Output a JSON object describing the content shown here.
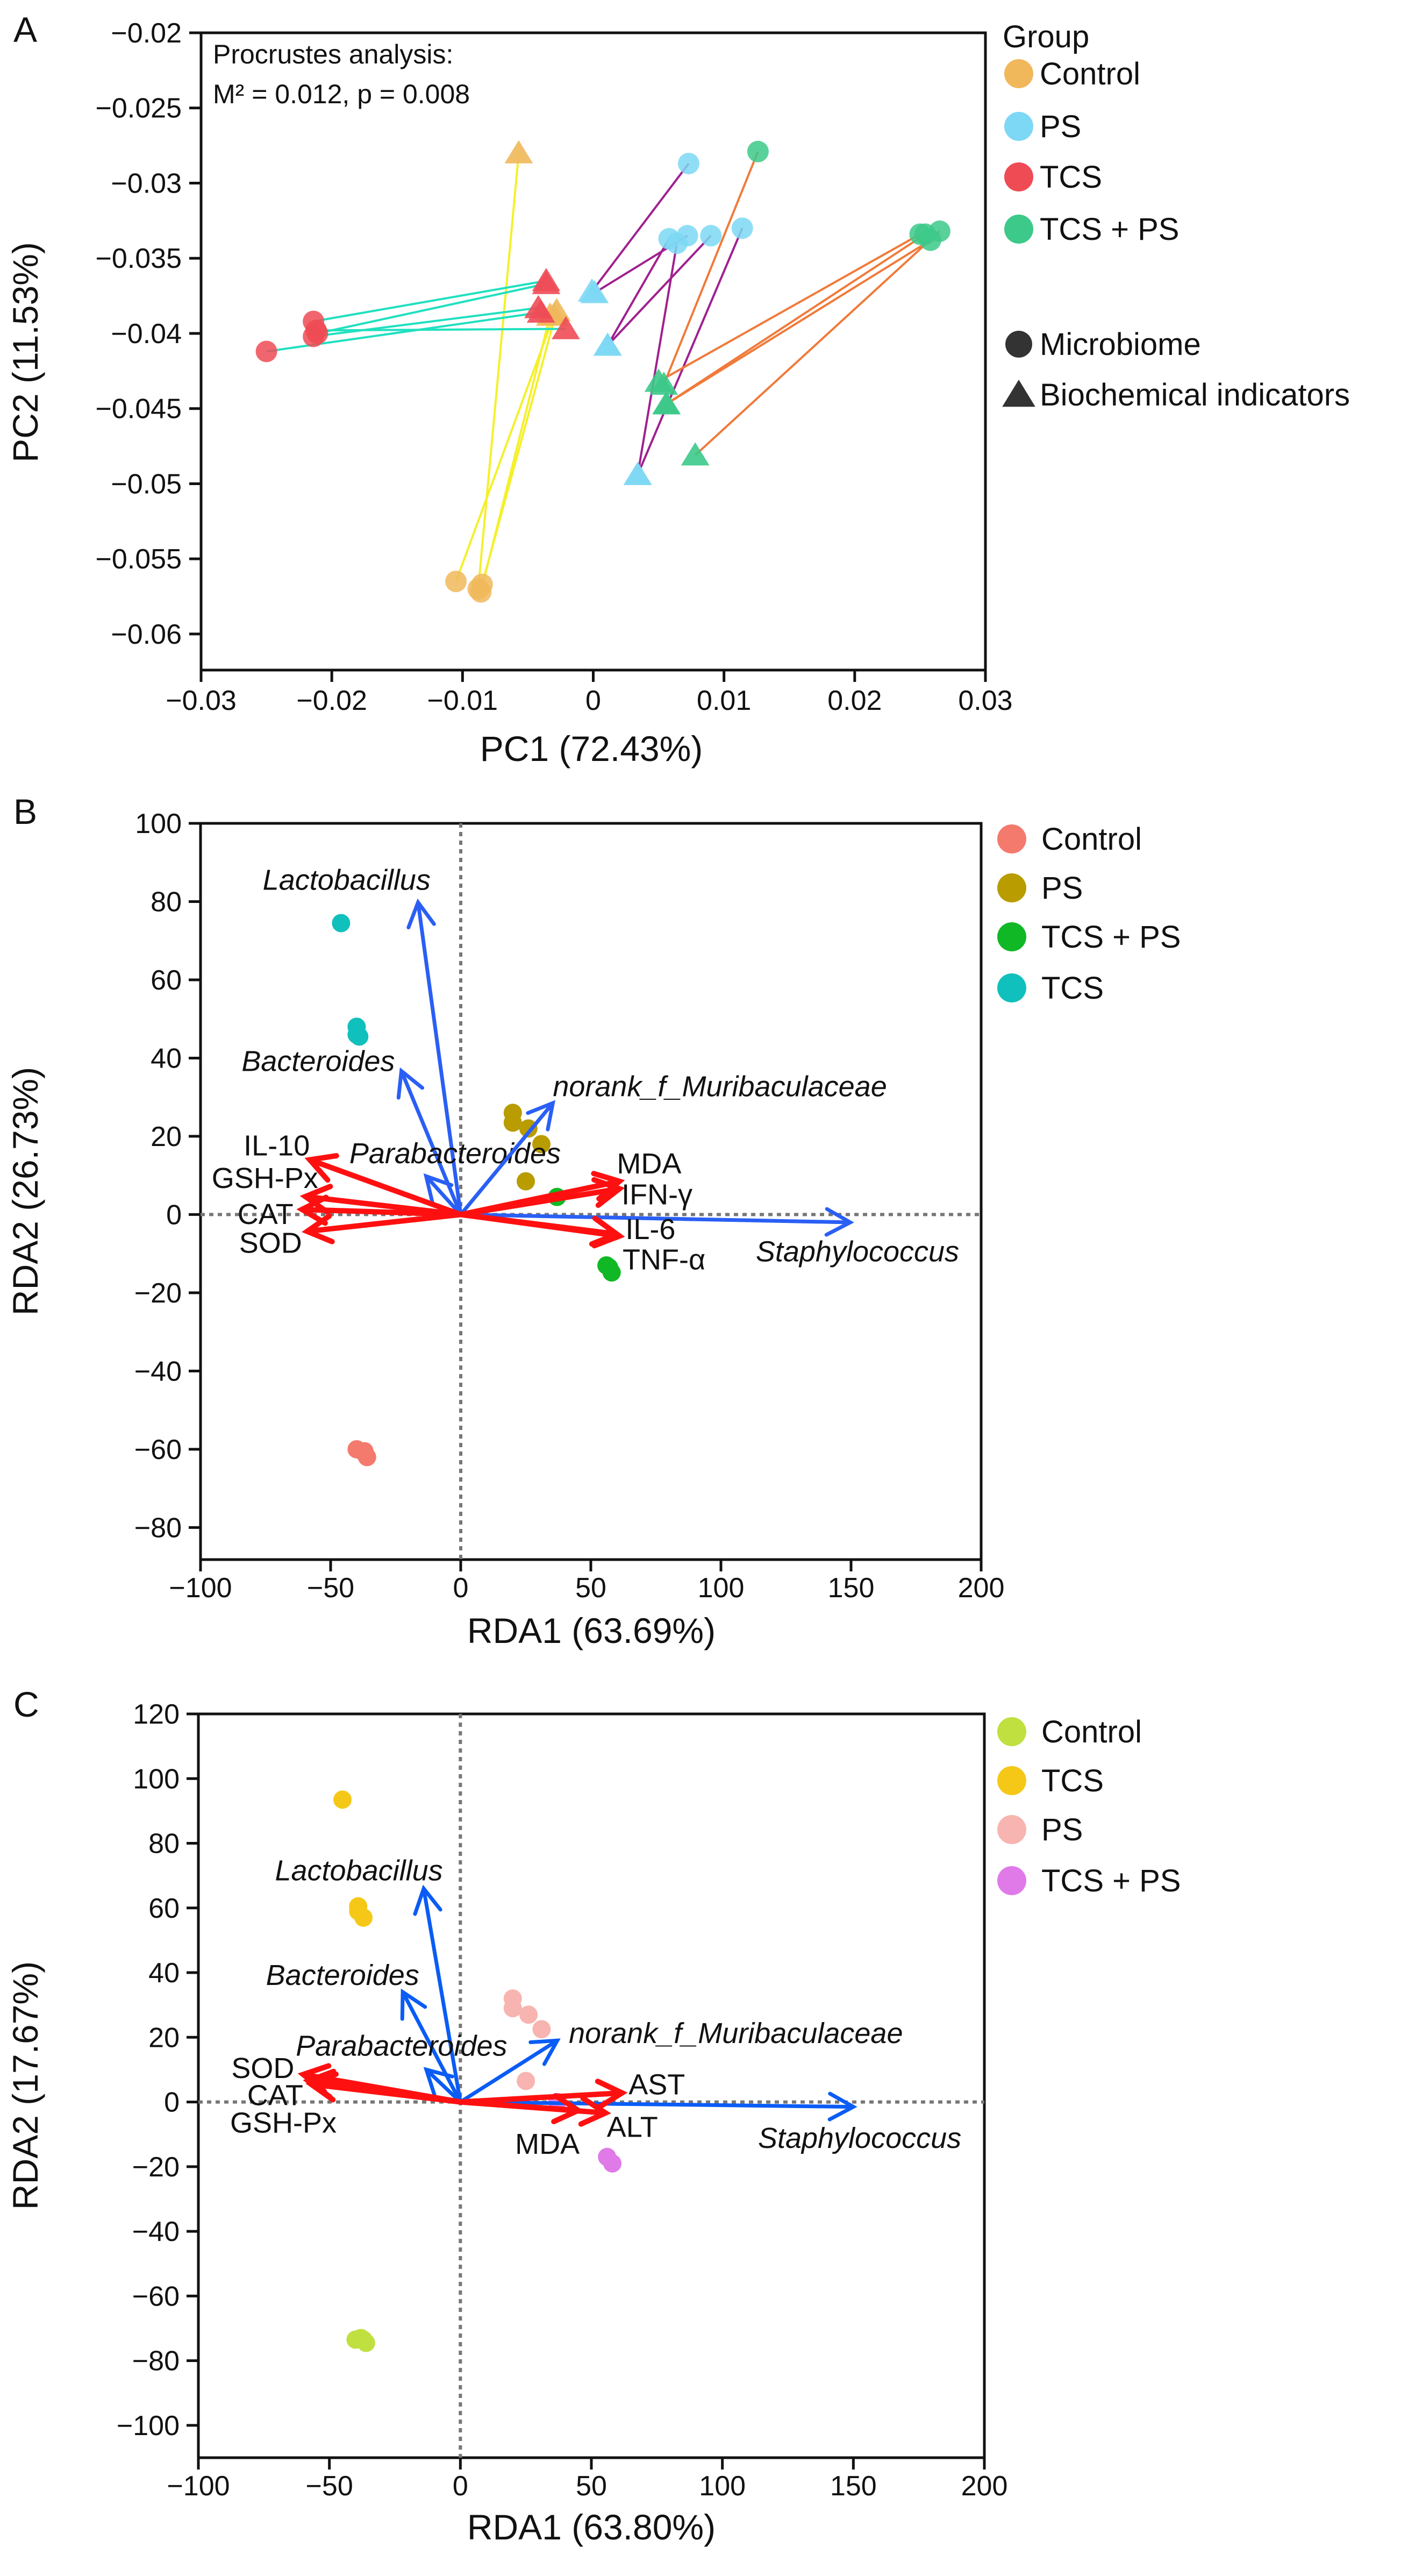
{
  "chart_data": [
    {
      "panel": "A",
      "type": "scatter",
      "title": "",
      "annotation": [
        "Procrustes analysis:",
        "M² = 0.012, p = 0.008"
      ],
      "xlabel": "PC1 (72.43%)",
      "ylabel": "PC2 (11.53%)",
      "xlim": [
        -0.03,
        0.03
      ],
      "ylim": [
        -0.0624,
        -0.02
      ],
      "xticks": [
        -0.03,
        -0.02,
        -0.01,
        0,
        0.01,
        0.02,
        0.03
      ],
      "xtick_labels": [
        "−0.03",
        "−0.02",
        "−0.01",
        "0",
        "0.01",
        "0.02",
        "0.03"
      ],
      "yticks": [
        -0.02,
        -0.025,
        -0.03,
        -0.035,
        -0.04,
        -0.045,
        -0.05,
        -0.055,
        -0.06
      ],
      "ytick_labels": [
        "−0.02",
        "−0.025",
        "−0.03",
        "−0.035",
        "−0.04",
        "−0.045",
        "−0.05",
        "−0.055",
        "−0.06"
      ],
      "legend_title": "Group",
      "shape_legend": [
        {
          "label": "Microbiome",
          "shape": "circle"
        },
        {
          "label": "Biochemical indicators",
          "shape": "triangle"
        }
      ],
      "legend_position": "right",
      "groups": [
        {
          "name": "Control",
          "color": "#F0B85A",
          "line_color": "#F5F02A",
          "pairs": [
            [
              [
                -0.0105,
                -0.0565
              ],
              [
                -0.003,
                -0.0388
              ]
            ],
            [
              [
                -0.0088,
                -0.057
              ],
              [
                -0.0057,
                -0.028
              ]
            ],
            [
              [
                -0.0086,
                -0.0572
              ],
              [
                -0.0033,
                -0.0388
              ]
            ],
            [
              [
                -0.0085,
                -0.0567
              ],
              [
                -0.0028,
                -0.0385
              ]
            ]
          ]
        },
        {
          "name": "PS",
          "color": "#7DD8F5",
          "line_color": "#A0208F",
          "pairs": [
            [
              [
                0.0073,
                -0.0287
              ],
              [
                -0.0001,
                -0.0372
              ]
            ],
            [
              [
                0.0072,
                -0.0335
              ],
              [
                0.0001,
                -0.0373
              ]
            ],
            [
              [
                0.0058,
                -0.0337
              ],
              [
                0.0011,
                -0.0408
              ]
            ],
            [
              [
                0.009,
                -0.0335
              ],
              [
                0.0011,
                -0.0408
              ]
            ],
            [
              [
                0.0064,
                -0.034
              ],
              [
                0.0034,
                -0.0494
              ]
            ],
            [
              [
                0.0114,
                -0.033
              ],
              [
                0.0034,
                -0.0494
              ]
            ]
          ]
        },
        {
          "name": "TCS",
          "color": "#EE4B55",
          "line_color": "#20E0C0",
          "pairs": [
            [
              [
                -0.0214,
                -0.0392
              ],
              [
                -0.0036,
                -0.0365
              ]
            ],
            [
              [
                -0.0211,
                -0.04
              ],
              [
                -0.0036,
                -0.0367
              ]
            ],
            [
              [
                -0.0214,
                -0.0402
              ],
              [
                -0.0042,
                -0.0383
              ]
            ],
            [
              [
                -0.0212,
                -0.0398
              ],
              [
                -0.0021,
                -0.0397
              ]
            ],
            [
              [
                -0.025,
                -0.0412
              ],
              [
                -0.004,
                -0.0386
              ]
            ]
          ]
        },
        {
          "name": "TCS + PS",
          "color": "#3CC98A",
          "line_color": "#F07A3A",
          "pairs": [
            [
              [
                0.0126,
                -0.0279
              ],
              [
                0.0054,
                -0.0434
              ]
            ],
            [
              [
                0.025,
                -0.0334
              ],
              [
                0.005,
                -0.0432
              ]
            ],
            [
              [
                0.0254,
                -0.0334
              ],
              [
                0.0056,
                -0.0447
              ]
            ],
            [
              [
                0.0258,
                -0.0338
              ],
              [
                0.0056,
                -0.0447
              ]
            ],
            [
              [
                0.0265,
                -0.0332
              ],
              [
                0.0078,
                -0.0481
              ]
            ]
          ]
        }
      ]
    },
    {
      "panel": "B",
      "type": "scatter",
      "xlabel": "RDA1 (63.69%)",
      "ylabel": "RDA2 (26.73%)",
      "xlim": [
        -100,
        200
      ],
      "ylim": [
        -88.2,
        100
      ],
      "xticks": [
        -100,
        -50,
        0,
        50,
        100,
        150,
        200
      ],
      "xtick_labels": [
        "−100",
        "−50",
        "0",
        "50",
        "100",
        "150",
        "200"
      ],
      "yticks": [
        100,
        80,
        60,
        40,
        20,
        0,
        -20,
        -40,
        -60,
        -80
      ],
      "ytick_labels": [
        "100",
        "80",
        "60",
        "40",
        "20",
        "0",
        "−20",
        "−40",
        "−60",
        "−80"
      ],
      "legend_position": "right",
      "groups": [
        {
          "name": "Control",
          "color": "#F47A6E",
          "points": [
            [
              -40,
              -60
            ],
            [
              -37,
              -60.5
            ],
            [
              -36,
              -62
            ],
            [
              -37,
              -61
            ]
          ]
        },
        {
          "name": "PS",
          "color": "#B89C00",
          "points": [
            [
              20,
              26
            ],
            [
              20,
              23.5
            ],
            [
              26,
              22
            ],
            [
              31,
              18
            ],
            [
              25,
              8.5
            ]
          ]
        },
        {
          "name": "TCS + PS",
          "color": "#10B825",
          "points": [
            [
              37,
              4.5
            ],
            [
              56,
              -13
            ],
            [
              57,
              -13.5
            ],
            [
              58,
              -14.8
            ]
          ]
        },
        {
          "name": "TCS",
          "color": "#10C0BC",
          "points": [
            [
              -46,
              74.5
            ],
            [
              -40,
              48
            ],
            [
              -40,
              46
            ],
            [
              -39,
              45.5
            ]
          ]
        }
      ],
      "arrows": [
        {
          "label": "Lactobacillus",
          "kind": "taxon",
          "color": "#2A5FF5",
          "x": -16.4,
          "y": 79.8
        },
        {
          "label": "Bacteroides",
          "kind": "taxon",
          "color": "#2A5FF5",
          "x": -22.8,
          "y": 36.7
        },
        {
          "label": "Parabacteroides",
          "kind": "taxon",
          "color": "#2A5FF5",
          "x": -13.3,
          "y": 9.8
        },
        {
          "label": "norank_f_Muribaculaceae",
          "kind": "taxon",
          "color": "#2A5FF5",
          "x": 35.4,
          "y": 28.5
        },
        {
          "label": "Staphylococcus",
          "kind": "taxon",
          "color": "#2A5FF5",
          "x": 149.7,
          "y": -2
        },
        {
          "label": "IL-10",
          "kind": "indicator",
          "color": "#FF1010",
          "x": -58,
          "y": 14
        },
        {
          "label": "GSH-Px",
          "kind": "indicator",
          "color": "#FF1010",
          "x": -59.7,
          "y": 4.6
        },
        {
          "label": "CAT",
          "kind": "indicator",
          "color": "#FF1010",
          "x": -61,
          "y": 1.3
        },
        {
          "label": "SOD",
          "kind": "indicator",
          "color": "#FF1010",
          "x": -59,
          "y": -4.3
        },
        {
          "label": "MDA",
          "kind": "indicator",
          "color": "#FF1010",
          "x": 61,
          "y": 8.5
        },
        {
          "label": "IFN-γ",
          "kind": "indicator",
          "color": "#FF1010",
          "x": 61,
          "y": 6.6
        },
        {
          "label": "IL-6",
          "kind": "indicator",
          "color": "#FF1010",
          "x": 61,
          "y": -5.5
        },
        {
          "label": "TNF-α",
          "kind": "indicator",
          "color": "#FF1010",
          "x": 60,
          "y": -5
        }
      ]
    },
    {
      "panel": "C",
      "type": "scatter",
      "xlabel": "RDA1 (63.80%)",
      "ylabel": "RDA2 (17.67%)",
      "xlim": [
        -100,
        200
      ],
      "ylim": [
        -110,
        120
      ],
      "xticks": [
        -100,
        -50,
        0,
        50,
        100,
        150,
        200
      ],
      "xtick_labels": [
        "−100",
        "−50",
        "0",
        "50",
        "100",
        "150",
        "200"
      ],
      "yticks": [
        120,
        100,
        80,
        60,
        40,
        20,
        0,
        -20,
        -40,
        -60,
        -80,
        -100
      ],
      "ytick_labels": [
        "120",
        "100",
        "80",
        "60",
        "40",
        "20",
        "0",
        "−20",
        "−40",
        "−60",
        "−80",
        "−100"
      ],
      "legend_position": "right",
      "groups": [
        {
          "name": "Control",
          "color": "#C0E040",
          "points": [
            [
              -40,
              -73.5
            ],
            [
              -37,
              -73.5
            ],
            [
              -36,
              -74.5
            ],
            [
              -38,
              -73
            ]
          ]
        },
        {
          "name": "TCS",
          "color": "#F5C818",
          "points": [
            [
              -45,
              93.5
            ],
            [
              -39,
              60.5
            ],
            [
              -39,
              59
            ],
            [
              -37,
              57
            ]
          ]
        },
        {
          "name": "PS",
          "color": "#F8B4B0",
          "points": [
            [
              20,
              32
            ],
            [
              20,
              29
            ],
            [
              26,
              27
            ],
            [
              31,
              22.5
            ],
            [
              25,
              6.5
            ]
          ]
        },
        {
          "name": "TCS + PS",
          "color": "#E07AE8",
          "points": [
            [
              56,
              -17
            ],
            [
              58,
              -19
            ],
            [
              37,
              0
            ]
          ]
        }
      ],
      "arrows": [
        {
          "label": "Lactobacillus",
          "kind": "taxon",
          "color": "#0A5CF5",
          "x": -14,
          "y": 66
        },
        {
          "label": "Bacteroides",
          "kind": "taxon",
          "color": "#0A5CF5",
          "x": -22,
          "y": 34
        },
        {
          "label": "Parabacteroides",
          "kind": "taxon",
          "color": "#0A5CF5",
          "x": -13,
          "y": 10
        },
        {
          "label": "norank_f_Muribaculaceae",
          "kind": "taxon",
          "color": "#0A5CF5",
          "x": 37,
          "y": 19
        },
        {
          "label": "Staphylococcus",
          "kind": "taxon",
          "color": "#0A5CF5",
          "x": 150,
          "y": -1.5
        },
        {
          "label": "SOD",
          "kind": "indicator",
          "color": "#FF1010",
          "x": -60,
          "y": 8.5
        },
        {
          "label": "CAT",
          "kind": "indicator",
          "color": "#FF1010",
          "x": -58,
          "y": 6.5
        },
        {
          "label": "GSH-Px",
          "kind": "indicator",
          "color": "#FF1010",
          "x": -57,
          "y": 5.5
        },
        {
          "label": "AST",
          "kind": "indicator",
          "color": "#FF1010",
          "x": 61.7,
          "y": 2.8
        },
        {
          "label": "ALT",
          "kind": "indicator",
          "color": "#FF1010",
          "x": 55.4,
          "y": -3.4
        },
        {
          "label": "MDA",
          "kind": "indicator",
          "color": "#FF1010",
          "x": 45,
          "y": -2.6
        }
      ]
    }
  ]
}
